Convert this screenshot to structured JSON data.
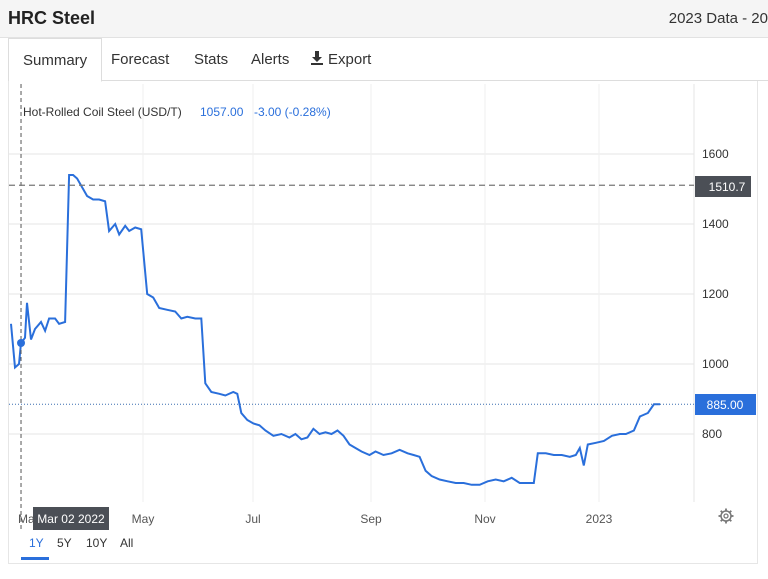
{
  "header": {
    "title": "HRC Steel",
    "data_info": "2023 Data - 20"
  },
  "tabs": [
    {
      "label": "Summary",
      "active": true
    },
    {
      "label": "Forecast"
    },
    {
      "label": "Stats"
    },
    {
      "label": "Alerts"
    },
    {
      "label": "Export",
      "icon": "download-icon"
    }
  ],
  "legend": {
    "name": "Hot-Rolled Coil Steel (USD/T)",
    "last": "1057.00",
    "change": "-3.00 (-0.28%)"
  },
  "crosshair": {
    "price_label": "1510.7",
    "date_label": "Mar 02 2022",
    "partial_month": "Ma"
  },
  "last_price_tag": "885.00",
  "ranges": [
    {
      "label": "1Y",
      "active": true
    },
    {
      "label": "5Y"
    },
    {
      "label": "10Y"
    },
    {
      "label": "All"
    }
  ],
  "colors": {
    "line": "#2a6fdb",
    "last_tag": "#2a6fdb",
    "crosshair_tag": "#4b4f56"
  },
  "chart_data": {
    "type": "line",
    "title": "",
    "series": [
      {
        "name": "Hot-Rolled Coil Steel (USD/T)",
        "points": [
          [
            "2022-02-25",
            1115
          ],
          [
            "2022-02-27",
            990
          ],
          [
            "2022-03-01",
            1000
          ],
          [
            "2022-03-02",
            1060
          ],
          [
            "2022-03-04",
            1075
          ],
          [
            "2022-03-05",
            1175
          ],
          [
            "2022-03-07",
            1070
          ],
          [
            "2022-03-09",
            1100
          ],
          [
            "2022-03-12",
            1120
          ],
          [
            "2022-03-14",
            1095
          ],
          [
            "2022-03-16",
            1130
          ],
          [
            "2022-03-19",
            1130
          ],
          [
            "2022-03-21",
            1115
          ],
          [
            "2022-03-24",
            1120
          ],
          [
            "2022-03-26",
            1540
          ],
          [
            "2022-03-28",
            1540
          ],
          [
            "2022-03-30",
            1530
          ],
          [
            "2022-04-02",
            1500
          ],
          [
            "2022-04-04",
            1480
          ],
          [
            "2022-04-07",
            1470
          ],
          [
            "2022-04-10",
            1470
          ],
          [
            "2022-04-13",
            1465
          ],
          [
            "2022-04-15",
            1380
          ],
          [
            "2022-04-18",
            1400
          ],
          [
            "2022-04-20",
            1370
          ],
          [
            "2022-04-23",
            1395
          ],
          [
            "2022-04-25",
            1380
          ],
          [
            "2022-04-28",
            1390
          ],
          [
            "2022-05-01",
            1385
          ],
          [
            "2022-05-04",
            1200
          ],
          [
            "2022-05-07",
            1190
          ],
          [
            "2022-05-10",
            1160
          ],
          [
            "2022-05-14",
            1155
          ],
          [
            "2022-05-18",
            1150
          ],
          [
            "2022-05-21",
            1130
          ],
          [
            "2022-05-24",
            1135
          ],
          [
            "2022-05-28",
            1130
          ],
          [
            "2022-05-31",
            1130
          ],
          [
            "2022-06-02",
            945
          ],
          [
            "2022-06-05",
            920
          ],
          [
            "2022-06-09",
            915
          ],
          [
            "2022-06-12",
            910
          ],
          [
            "2022-06-16",
            920
          ],
          [
            "2022-06-18",
            915
          ],
          [
            "2022-06-20",
            860
          ],
          [
            "2022-06-23",
            840
          ],
          [
            "2022-06-26",
            830
          ],
          [
            "2022-06-29",
            825
          ],
          [
            "2022-07-02",
            810
          ],
          [
            "2022-07-06",
            795
          ],
          [
            "2022-07-10",
            800
          ],
          [
            "2022-07-14",
            790
          ],
          [
            "2022-07-17",
            800
          ],
          [
            "2022-07-20",
            785
          ],
          [
            "2022-07-23",
            790
          ],
          [
            "2022-07-26",
            815
          ],
          [
            "2022-07-29",
            800
          ],
          [
            "2022-08-01",
            805
          ],
          [
            "2022-08-04",
            800
          ],
          [
            "2022-08-07",
            810
          ],
          [
            "2022-08-10",
            795
          ],
          [
            "2022-08-13",
            770
          ],
          [
            "2022-08-16",
            760
          ],
          [
            "2022-08-19",
            750
          ],
          [
            "2022-08-23",
            740
          ],
          [
            "2022-08-26",
            750
          ],
          [
            "2022-08-30",
            740
          ],
          [
            "2022-09-03",
            745
          ],
          [
            "2022-09-07",
            755
          ],
          [
            "2022-09-11",
            745
          ],
          [
            "2022-09-14",
            740
          ],
          [
            "2022-09-17",
            735
          ],
          [
            "2022-09-20",
            695
          ],
          [
            "2022-09-23",
            680
          ],
          [
            "2022-09-27",
            670
          ],
          [
            "2022-10-01",
            665
          ],
          [
            "2022-10-05",
            660
          ],
          [
            "2022-10-09",
            660
          ],
          [
            "2022-10-13",
            655
          ],
          [
            "2022-10-17",
            655
          ],
          [
            "2022-10-21",
            665
          ],
          [
            "2022-10-25",
            670
          ],
          [
            "2022-10-29",
            665
          ],
          [
            "2022-11-02",
            675
          ],
          [
            "2022-11-06",
            660
          ],
          [
            "2022-11-10",
            660
          ],
          [
            "2022-11-13",
            660
          ],
          [
            "2022-11-15",
            745
          ],
          [
            "2022-11-19",
            745
          ],
          [
            "2022-11-23",
            740
          ],
          [
            "2022-11-27",
            740
          ],
          [
            "2022-12-01",
            735
          ],
          [
            "2022-12-04",
            740
          ],
          [
            "2022-12-06",
            760
          ],
          [
            "2022-12-08",
            710
          ],
          [
            "2022-12-10",
            770
          ],
          [
            "2022-12-14",
            775
          ],
          [
            "2022-12-18",
            780
          ],
          [
            "2022-12-22",
            795
          ],
          [
            "2022-12-26",
            800
          ],
          [
            "2022-12-29",
            800
          ],
          [
            "2023-01-02",
            810
          ],
          [
            "2023-01-05",
            850
          ],
          [
            "2023-01-09",
            860
          ],
          [
            "2023-01-12",
            885
          ],
          [
            "2023-01-15",
            885
          ]
        ]
      }
    ],
    "x_ticks": [
      "May",
      "Jul",
      "Sep",
      "Nov",
      "2023"
    ],
    "y_ticks": [
      800,
      1000,
      1200,
      1400,
      1600
    ],
    "ylim": [
      570,
      1720
    ],
    "grid": true,
    "legend_position": "top-left"
  }
}
